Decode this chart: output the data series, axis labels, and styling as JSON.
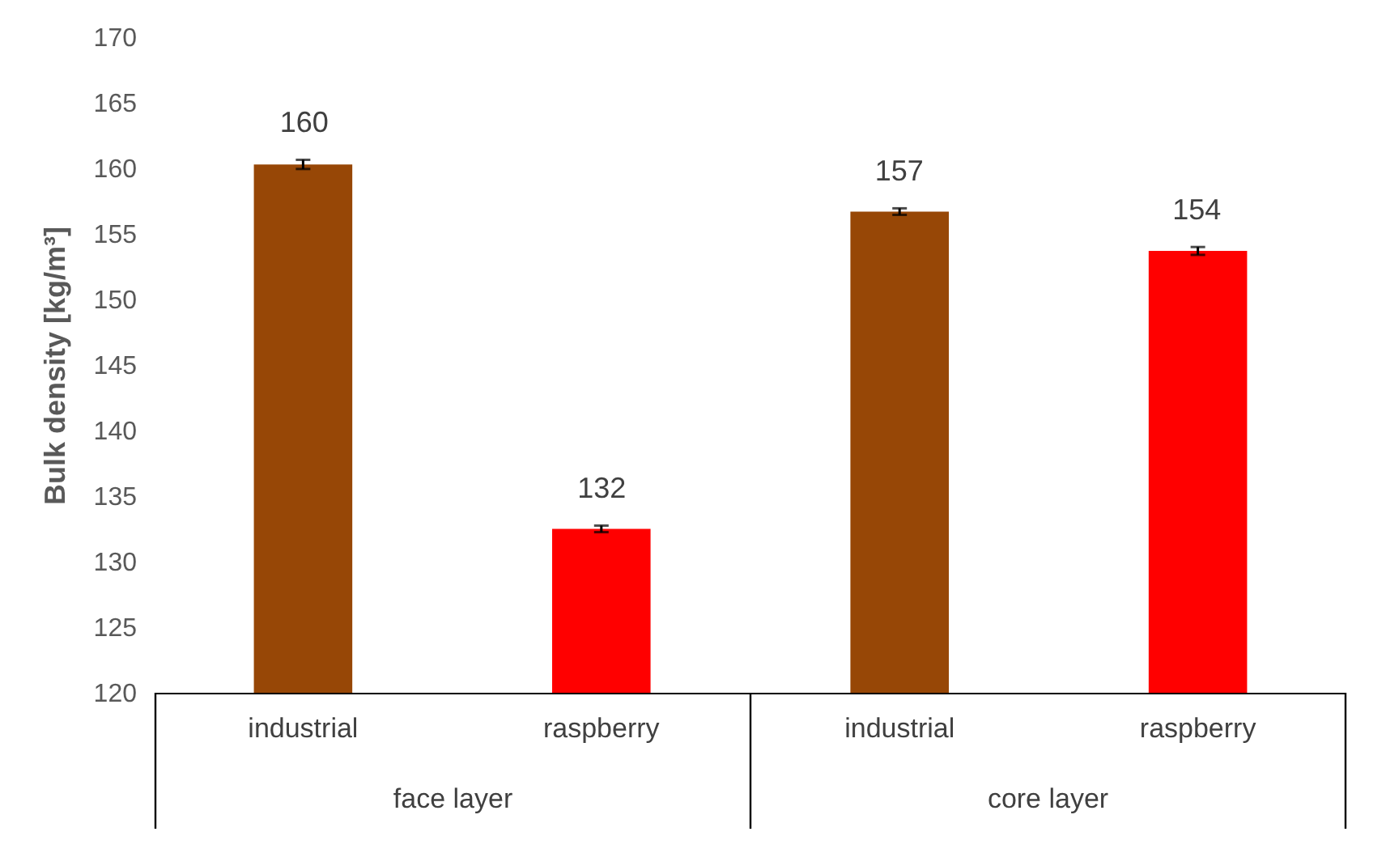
{
  "chart_data": {
    "type": "bar",
    "ylabel": "Bulk density [kg/m³]",
    "categories": [
      "industrial",
      "raspberry",
      "industrial",
      "raspberry"
    ],
    "values": [
      160.3,
      132.5,
      156.7,
      153.7
    ],
    "errors": [
      0.35,
      0.25,
      0.25,
      0.3
    ],
    "value_labels": [
      "160",
      "132",
      "157",
      "154"
    ],
    "colors": [
      "#974706",
      "#ff0000",
      "#974706",
      "#ff0000"
    ],
    "ylim": [
      120,
      170
    ],
    "yticks": [
      120,
      125,
      130,
      135,
      140,
      145,
      150,
      155,
      160,
      165,
      170
    ],
    "annotations": [
      "face layer",
      "core layer"
    ]
  }
}
